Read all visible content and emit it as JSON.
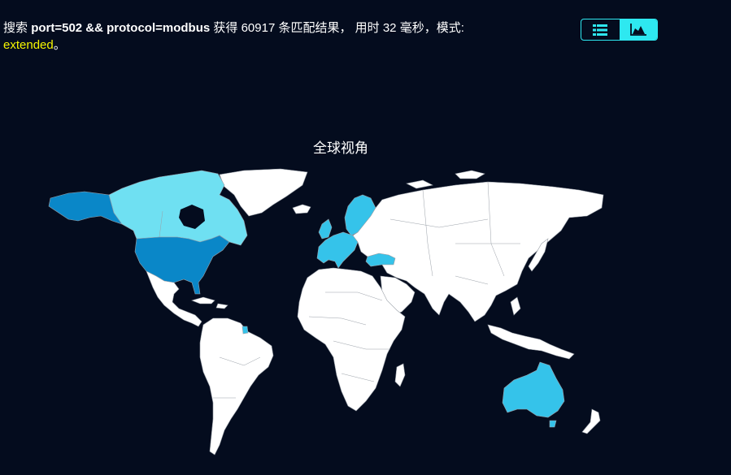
{
  "summary": {
    "prefix": "搜索",
    "query": "port=502 && protocol=modbus",
    "found_label": "获得",
    "count": "60917",
    "matches_label": "条匹配结果，",
    "time_label": "用时",
    "time_value": "32",
    "time_unit": "毫秒，模式:",
    "mode": "extended",
    "end": "。"
  },
  "view_toggle": {
    "list_icon": "list-icon",
    "chart_icon": "area-chart-icon",
    "active": "chart"
  },
  "map": {
    "title": "全球视角",
    "colors": {
      "background": "#040c1e",
      "land": "#ffffff",
      "high": "#0a87c8",
      "mid": "#35c3ea",
      "low": "#6fe0f2",
      "accent": "#2ee8f0",
      "mode_text": "#f5f500"
    },
    "highlighted_regions": [
      {
        "name": "United States",
        "level": "high"
      },
      {
        "name": "Alaska",
        "level": "high"
      },
      {
        "name": "Canada",
        "level": "low"
      },
      {
        "name": "Scandinavia",
        "level": "mid"
      },
      {
        "name": "Western Europe",
        "level": "mid"
      },
      {
        "name": "Turkey",
        "level": "mid"
      },
      {
        "name": "Australia",
        "level": "mid"
      },
      {
        "name": "French Guiana",
        "level": "mid"
      }
    ]
  }
}
